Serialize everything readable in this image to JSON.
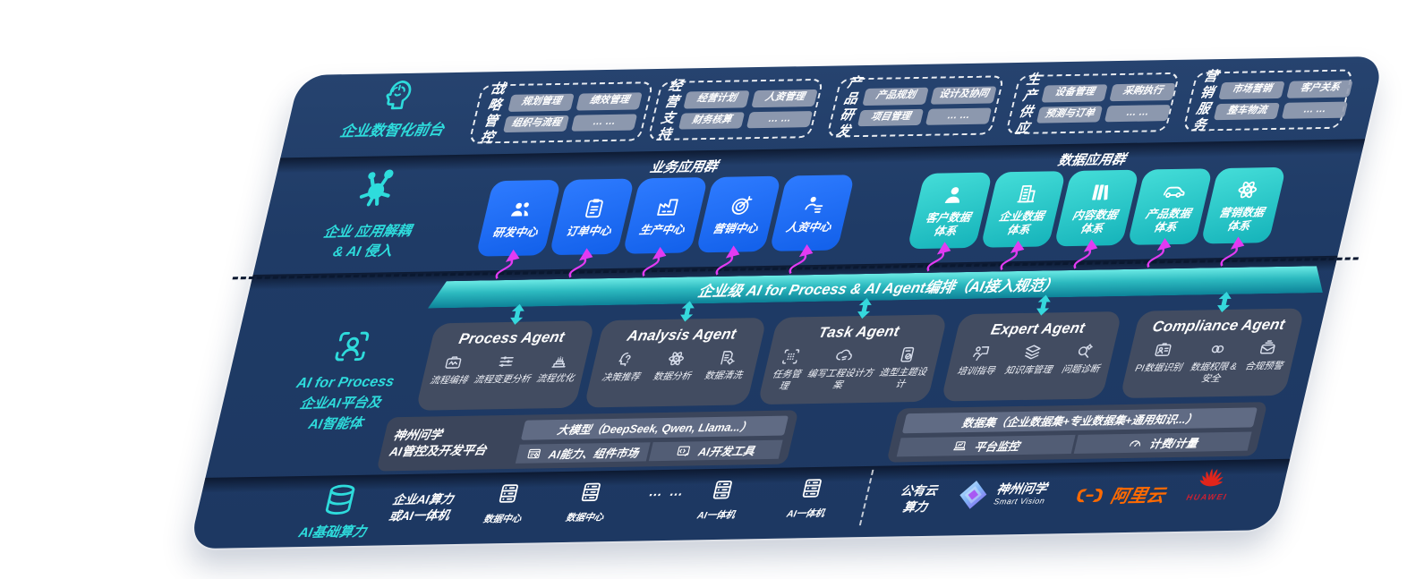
{
  "colors": {
    "navy": "#1E3A66",
    "accent_teal": "#2EDCDC",
    "blue_box": "#1866F2",
    "teal_box": "#29C7C9",
    "magenta": "#E23BF2",
    "ali_orange": "#FF6A00",
    "huawei_red": "#CF2030"
  },
  "front_office": {
    "label": "企业数智化前台",
    "groups": [
      {
        "title": [
          "战略",
          "管控"
        ],
        "chips": [
          "规划管理",
          "绩效管理",
          "组织与流程",
          "… …"
        ]
      },
      {
        "title": [
          "经营",
          "支持"
        ],
        "chips": [
          "经营计划",
          "人资管理",
          "财务核算",
          "… …"
        ]
      },
      {
        "title": [
          "产品",
          "研发"
        ],
        "chips": [
          "产品规划",
          "设计及协同",
          "项目管理",
          "… …"
        ]
      },
      {
        "title": [
          "生产",
          "供应"
        ],
        "chips": [
          "设备管理",
          "采购执行",
          "预测与订单",
          "… …"
        ]
      },
      {
        "title": [
          "营销",
          "服务"
        ],
        "chips": [
          "市场营销",
          "客户关系",
          "整车物流",
          "… …"
        ]
      }
    ]
  },
  "app_layer": {
    "label": [
      "企业 应用解耦",
      "& AI 侵入"
    ],
    "business": {
      "header": "业务应用群",
      "boxes": [
        {
          "icon": "people-icon",
          "label": "研发中心"
        },
        {
          "icon": "clipboard-icon",
          "label": "订单中心"
        },
        {
          "icon": "factory-icon",
          "label": "生产中心"
        },
        {
          "icon": "target-icon",
          "label": "营销中心"
        },
        {
          "icon": "team-icon",
          "label": "人资中心"
        }
      ]
    },
    "data": {
      "header": "数据应用群",
      "boxes": [
        {
          "icon": "user-icon",
          "label": "客户数据\n体系"
        },
        {
          "icon": "building-icon",
          "label": "企业数据\n体系"
        },
        {
          "icon": "books-icon",
          "label": "内容数据\n体系"
        },
        {
          "icon": "car-icon",
          "label": "产品数据\n体系"
        },
        {
          "icon": "atom-icon",
          "label": "营销数据\n体系"
        }
      ]
    }
  },
  "ai_layer": {
    "label": [
      "AI for Process",
      "企业AI平台及",
      "AI智能体"
    ],
    "bar": "企业级 AI for Process & AI Agent编排（AI接入规范）",
    "agents": [
      {
        "title": "Process Agent",
        "items": [
          {
            "icon": "wave-monitor-icon",
            "label": "流程编排"
          },
          {
            "icon": "sliders-icon",
            "label": "流程变更分析"
          },
          {
            "icon": "stack-cake-icon",
            "label": "流程优化"
          }
        ]
      },
      {
        "title": "Analysis Agent",
        "items": [
          {
            "icon": "head-idea-icon",
            "label": "决策推荐"
          },
          {
            "icon": "atom-line-icon",
            "label": "数据分析"
          },
          {
            "icon": "doc-gear-icon",
            "label": "数据清洗"
          }
        ]
      },
      {
        "title": "Task Agent",
        "items": [
          {
            "icon": "grid-scan-icon",
            "label": "任务管理"
          },
          {
            "icon": "cloud-gear-icon",
            "label": "编写工程设计方案"
          },
          {
            "icon": "tablet-check-icon",
            "label": "造型主题设计"
          }
        ]
      },
      {
        "title": "Expert Agent",
        "items": [
          {
            "icon": "trainer-icon",
            "label": "培训指导"
          },
          {
            "icon": "layers-icon",
            "label": "知识库管理"
          },
          {
            "icon": "diagnose-icon",
            "label": "问题诊断"
          }
        ]
      },
      {
        "title": "Compliance Agent",
        "items": [
          {
            "icon": "id-card-icon",
            "label": "PI数据识别"
          },
          {
            "icon": "link-rings-icon",
            "label": "数据权限 &\n安全"
          },
          {
            "icon": "mail-alert-icon",
            "label": "合规预警"
          }
        ]
      }
    ],
    "platform": {
      "name": [
        "神州问学",
        "AI管控及开发平台"
      ],
      "model_bar": "大模型（DeepSeek, Qwen, Llama...）",
      "cells": [
        {
          "icon": "window-gear-icon",
          "label": "AI能力、组件市场"
        },
        {
          "icon": "code-tool-icon",
          "label": "AI开发工具"
        }
      ],
      "dataset_bar": "数据集（企业数据集+专业数据集+通用知识...）",
      "cells2": [
        {
          "icon": "laptop-chart-icon",
          "label": "平台监控"
        },
        {
          "icon": "gauge-icon",
          "label": "计费/计量"
        }
      ]
    }
  },
  "infra": {
    "label": "AI基础算力",
    "compute": [
      "企业AI算力",
      "或AI一体机"
    ],
    "servers": [
      {
        "label": "数据中心"
      },
      {
        "label": "数据中心"
      },
      {
        "label": "AI一体机"
      },
      {
        "label": "AI一体机"
      }
    ],
    "dots": "… …",
    "public_cloud": [
      "公有云",
      "算力"
    ],
    "vendors": {
      "sv_name": "神州问学",
      "sv_tagline": "Smart Vision",
      "alicloud": "阿里云",
      "huawei": "HUAWEI"
    }
  }
}
